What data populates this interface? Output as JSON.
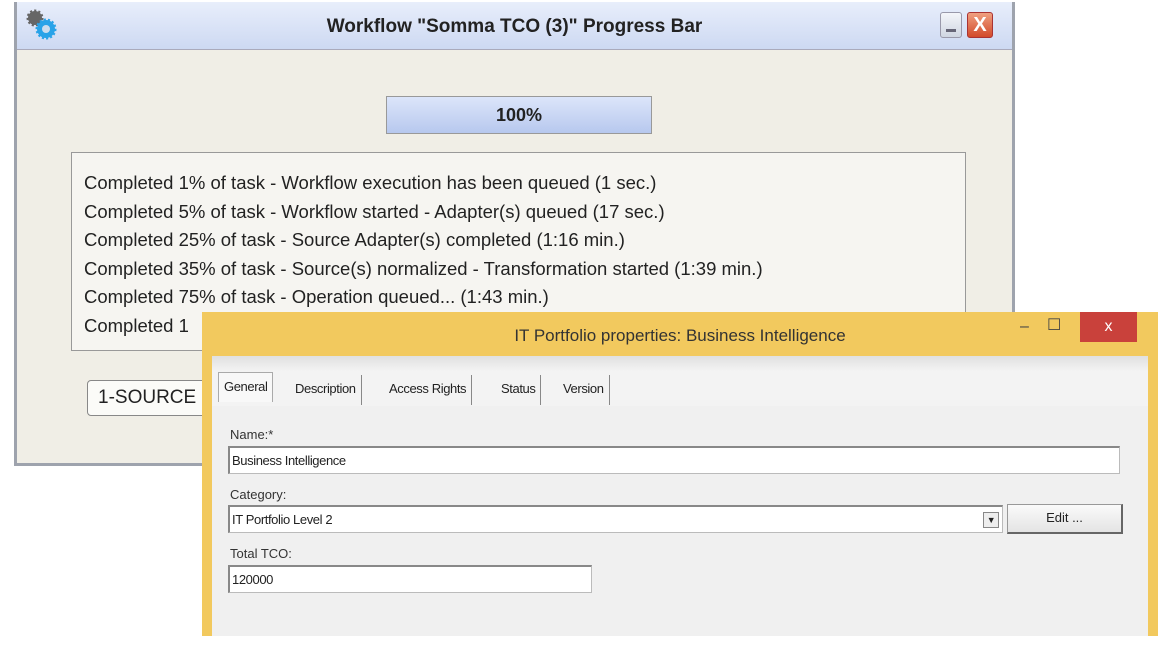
{
  "progress_window": {
    "title": "Workflow \"Somma TCO (3)\" Progress Bar",
    "progress": {
      "value_percent": 100,
      "label": "100%"
    },
    "log_lines": [
      "Completed 1% of task - Workflow execution has been queued  (1 sec.)",
      "Completed 5% of task - Workflow started - Adapter(s) queued  (17 sec.)",
      "Completed 25% of task - Source Adapter(s) completed  (1:16 min.)",
      "Completed 35% of task - Source(s) normalized - Transformation started  (1:39 min.)",
      "Completed 75% of task - Operation queued...  (1:43 min.)",
      "Completed 1"
    ],
    "combo_value": "1-SOURCE",
    "close_label": "X"
  },
  "properties_window": {
    "title": "IT Portfolio properties: Business Intelligence",
    "controls": {
      "minimize": "–",
      "maximize": "☐",
      "close": "x"
    },
    "tabs": [
      {
        "label": "General",
        "active": true
      },
      {
        "label": "Description"
      },
      {
        "label": "Access Rights"
      },
      {
        "label": "Status"
      },
      {
        "label": "Version"
      }
    ],
    "name_label": "Name:*",
    "name_value": "Business Intelligence",
    "category_label": "Category:",
    "category_value": "IT Portfolio Level 2",
    "edit_button": "Edit ...",
    "tco_label": "Total TCO:",
    "tco_value": "120000",
    "accent_color": "#f2c95e"
  }
}
